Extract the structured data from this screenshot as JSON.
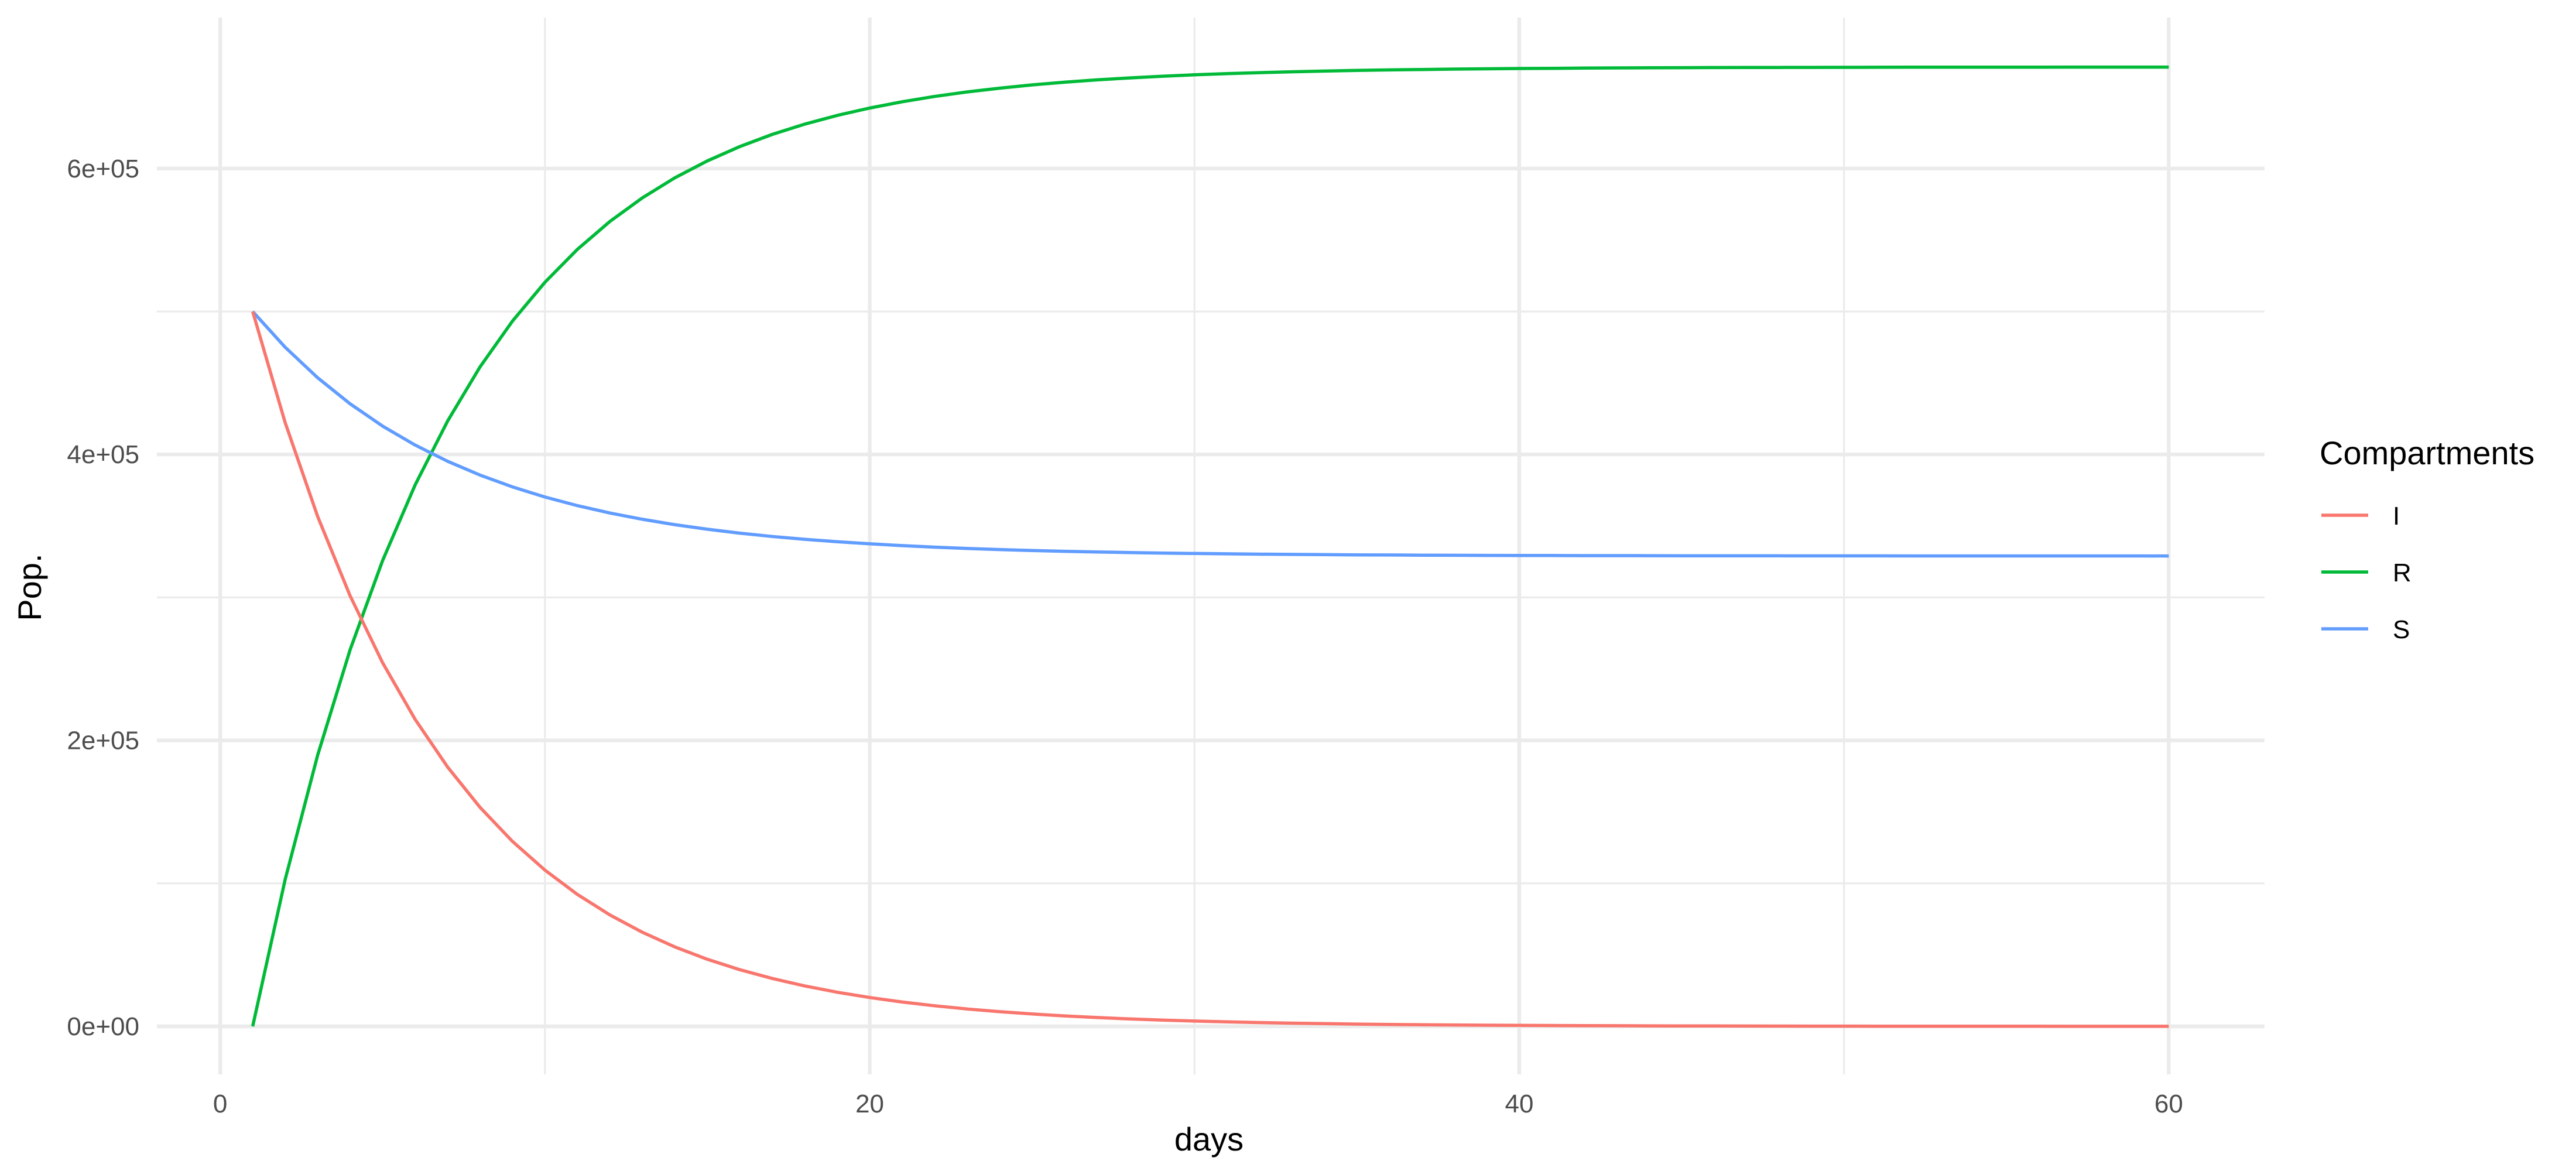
{
  "chart_data": {
    "type": "line",
    "title": "",
    "xlabel": "days",
    "ylabel": "Pop.",
    "xlim": [
      -1.95,
      62.95
    ],
    "ylim": [
      -33600,
      705600
    ],
    "x_ticks": [
      {
        "value": 0,
        "label": "0"
      },
      {
        "value": 20,
        "label": "20"
      },
      {
        "value": 40,
        "label": "40"
      },
      {
        "value": 60,
        "label": "60"
      }
    ],
    "x_minor_ticks": [
      10,
      30,
      50
    ],
    "y_ticks": [
      {
        "value": 0,
        "label": "0e+00"
      },
      {
        "value": 200000,
        "label": "2e+05"
      },
      {
        "value": 400000,
        "label": "4e+05"
      },
      {
        "value": 600000,
        "label": "6e+05"
      }
    ],
    "y_minor_ticks": [
      100000,
      300000,
      500000
    ],
    "grid": true,
    "legend": {
      "title": "Compartments",
      "position": "right"
    },
    "model": {
      "days_start": 1,
      "days_end": 60,
      "S0": 500000,
      "I0": 500000,
      "R0": 0
    },
    "series": [
      {
        "name": "I",
        "color": "#F8766D"
      },
      {
        "name": "R",
        "color": "#00BA38"
      },
      {
        "name": "S",
        "color": "#619CFF"
      }
    ]
  }
}
